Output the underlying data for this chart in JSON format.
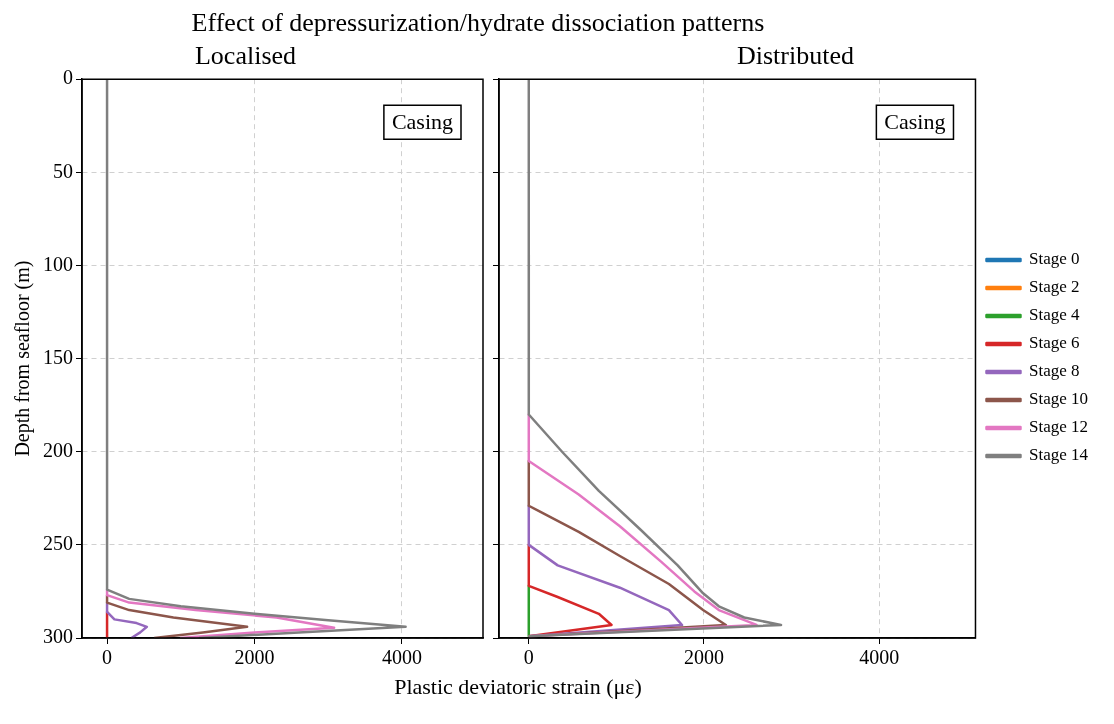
{
  "chart_data": [
    {
      "type": "line",
      "title": "Effect of depressurization/hydrate dissociation patterns",
      "subtitle": "Localised",
      "xlabel": "Plastic deviatoric strain (με)",
      "ylabel": "Depth from seafloor (m)",
      "annotations": [
        "Casing"
      ],
      "xlim": [
        -340,
        5100
      ],
      "xticks": [
        0,
        2000,
        4000
      ],
      "ylim": [
        300,
        0
      ],
      "yticks": [
        0,
        50,
        100,
        150,
        200,
        250,
        300
      ],
      "grid": true,
      "legend": false,
      "series": [
        {
          "color": "#d62728",
          "x": [
            0,
            0
          ],
          "values": [
            286,
            300
          ]
        },
        {
          "color": "#9467bd",
          "x": [
            0,
            0,
            100,
            400,
            540,
            450,
            330
          ],
          "values": [
            281,
            286,
            290,
            292,
            294,
            297,
            300
          ]
        },
        {
          "color": "#8c564b",
          "x": [
            0,
            0,
            300,
            900,
            1900,
            1300,
            640
          ],
          "values": [
            277,
            281,
            285,
            289,
            294,
            297,
            300
          ]
        },
        {
          "color": "#e377c2",
          "x": [
            0,
            0,
            300,
            1200,
            2300,
            3080,
            2000,
            990
          ],
          "values": [
            274,
            277,
            281,
            285,
            289,
            294.5,
            297,
            300
          ]
        },
        {
          "color": "#7f7f7f",
          "x": [
            0,
            0,
            300,
            1000,
            2000,
            3000,
            4050,
            2600,
            1250
          ],
          "values": [
            0,
            274,
            279,
            283,
            287,
            290.5,
            294,
            297,
            300
          ]
        }
      ]
    },
    {
      "type": "line",
      "title": "Distributed",
      "annotations": [
        "Casing"
      ],
      "xlim": [
        -340,
        5100
      ],
      "xticks": [
        0,
        2000,
        4000
      ],
      "ylim": [
        300,
        0
      ],
      "yticks": [
        0,
        50,
        100,
        150,
        200,
        250,
        300
      ],
      "tick_labels": "x",
      "grid": true,
      "legend": "right",
      "series": [
        {
          "name": "Stage 0",
          "color": "#1f77b4",
          "x": [
            null,
            null
          ],
          "values": [
            null,
            null
          ]
        },
        {
          "name": "Stage 2",
          "color": "#ff7f0e",
          "x": [
            null,
            null
          ],
          "values": [
            null,
            null
          ]
        },
        {
          "name": "Stage 4",
          "color": "#2ca02c",
          "x": [
            0,
            0
          ],
          "values": [
            272,
            299
          ]
        },
        {
          "name": "Stage 6",
          "color": "#d62728",
          "x": [
            0,
            0,
            330,
            800,
            945,
            0
          ],
          "values": [
            250,
            272,
            278,
            287,
            293,
            299
          ]
        },
        {
          "name": "Stage 8",
          "color": "#9467bd",
          "x": [
            0,
            0,
            330,
            1040,
            1600,
            1750,
            0
          ],
          "values": [
            229,
            250,
            261,
            273,
            285,
            293,
            299
          ]
        },
        {
          "name": "Stage 10",
          "color": "#8c564b",
          "x": [
            0,
            0,
            570,
            1040,
            1600,
            1990,
            2250,
            0
          ],
          "values": [
            205,
            229,
            243,
            256,
            271,
            285,
            293,
            299
          ]
        },
        {
          "name": "Stage 12",
          "color": "#e377c2",
          "x": [
            0,
            0,
            570,
            1040,
            1510,
            1890,
            2170,
            2600,
            0
          ],
          "values": [
            180,
            205,
            223,
            240,
            259,
            275,
            285,
            293,
            299
          ]
        },
        {
          "name": "Stage 14",
          "color": "#7f7f7f",
          "x": [
            0,
            0,
            380,
            800,
            1280,
            1700,
            1990,
            2170,
            2460,
            2880,
            0
          ],
          "values": [
            0,
            180,
            200,
            221,
            242,
            261,
            276,
            283,
            289,
            293,
            299
          ]
        }
      ]
    }
  ]
}
